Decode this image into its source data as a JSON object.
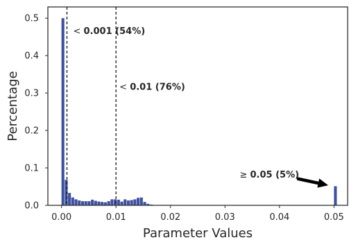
{
  "chart_data": {
    "type": "bar",
    "xlabel": "Parameter Values",
    "ylabel": "Percentage",
    "xlim": [
      -0.0025,
      0.0525
    ],
    "ylim": [
      0,
      0.53
    ],
    "xticks": [
      0.0,
      0.01,
      0.02,
      0.03,
      0.04,
      0.05
    ],
    "xtick_labels": [
      "0.00",
      "0.01",
      "0.02",
      "0.03",
      "0.04",
      "0.05"
    ],
    "yticks": [
      0.0,
      0.1,
      0.2,
      0.3,
      0.4,
      0.5
    ],
    "ytick_labels": [
      "0.0",
      "0.1",
      "0.2",
      "0.3",
      "0.4",
      "0.5"
    ],
    "grid": false,
    "bar_color": "#3f51a0",
    "bin_width": 0.0006,
    "bars": [
      {
        "x": 0.0,
        "y": 0.5
      },
      {
        "x": 0.0006,
        "y": 0.068
      },
      {
        "x": 0.0012,
        "y": 0.033
      },
      {
        "x": 0.0018,
        "y": 0.021
      },
      {
        "x": 0.0024,
        "y": 0.016
      },
      {
        "x": 0.003,
        "y": 0.013
      },
      {
        "x": 0.0036,
        "y": 0.011
      },
      {
        "x": 0.0042,
        "y": 0.011
      },
      {
        "x": 0.0048,
        "y": 0.011
      },
      {
        "x": 0.0054,
        "y": 0.015
      },
      {
        "x": 0.006,
        "y": 0.012
      },
      {
        "x": 0.0066,
        "y": 0.01
      },
      {
        "x": 0.0072,
        "y": 0.009
      },
      {
        "x": 0.0078,
        "y": 0.008
      },
      {
        "x": 0.0084,
        "y": 0.011
      },
      {
        "x": 0.009,
        "y": 0.016
      },
      {
        "x": 0.0096,
        "y": 0.016
      },
      {
        "x": 0.0102,
        "y": 0.015
      },
      {
        "x": 0.0108,
        "y": 0.01
      },
      {
        "x": 0.0114,
        "y": 0.016
      },
      {
        "x": 0.012,
        "y": 0.013
      },
      {
        "x": 0.0126,
        "y": 0.014
      },
      {
        "x": 0.0132,
        "y": 0.016
      },
      {
        "x": 0.0138,
        "y": 0.02
      },
      {
        "x": 0.0144,
        "y": 0.021
      },
      {
        "x": 0.015,
        "y": 0.009
      },
      {
        "x": 0.0156,
        "y": 0.004
      },
      {
        "x": 0.0162,
        "y": 0.002
      },
      {
        "x": 0.0168,
        "y": 0.001
      },
      {
        "x": 0.0174,
        "y": 0.001
      },
      {
        "x": 0.018,
        "y": 0.001
      },
      {
        "x": 0.0186,
        "y": 0.001
      },
      {
        "x": 0.0192,
        "y": 0.001
      },
      {
        "x": 0.0198,
        "y": 0.001
      },
      {
        "x": 0.05,
        "y": 0.051
      }
    ],
    "thresholds": [
      {
        "x": 0.001,
        "label_prefix": "< ",
        "label_value": "0.001 (54%)"
      },
      {
        "x": 0.01,
        "label_prefix": "< ",
        "label_value": "0.01 (76%)"
      }
    ],
    "tail_annotation": {
      "label_prefix": "≥ ",
      "label_value": "0.05 (5%)",
      "y": 0.08
    }
  }
}
